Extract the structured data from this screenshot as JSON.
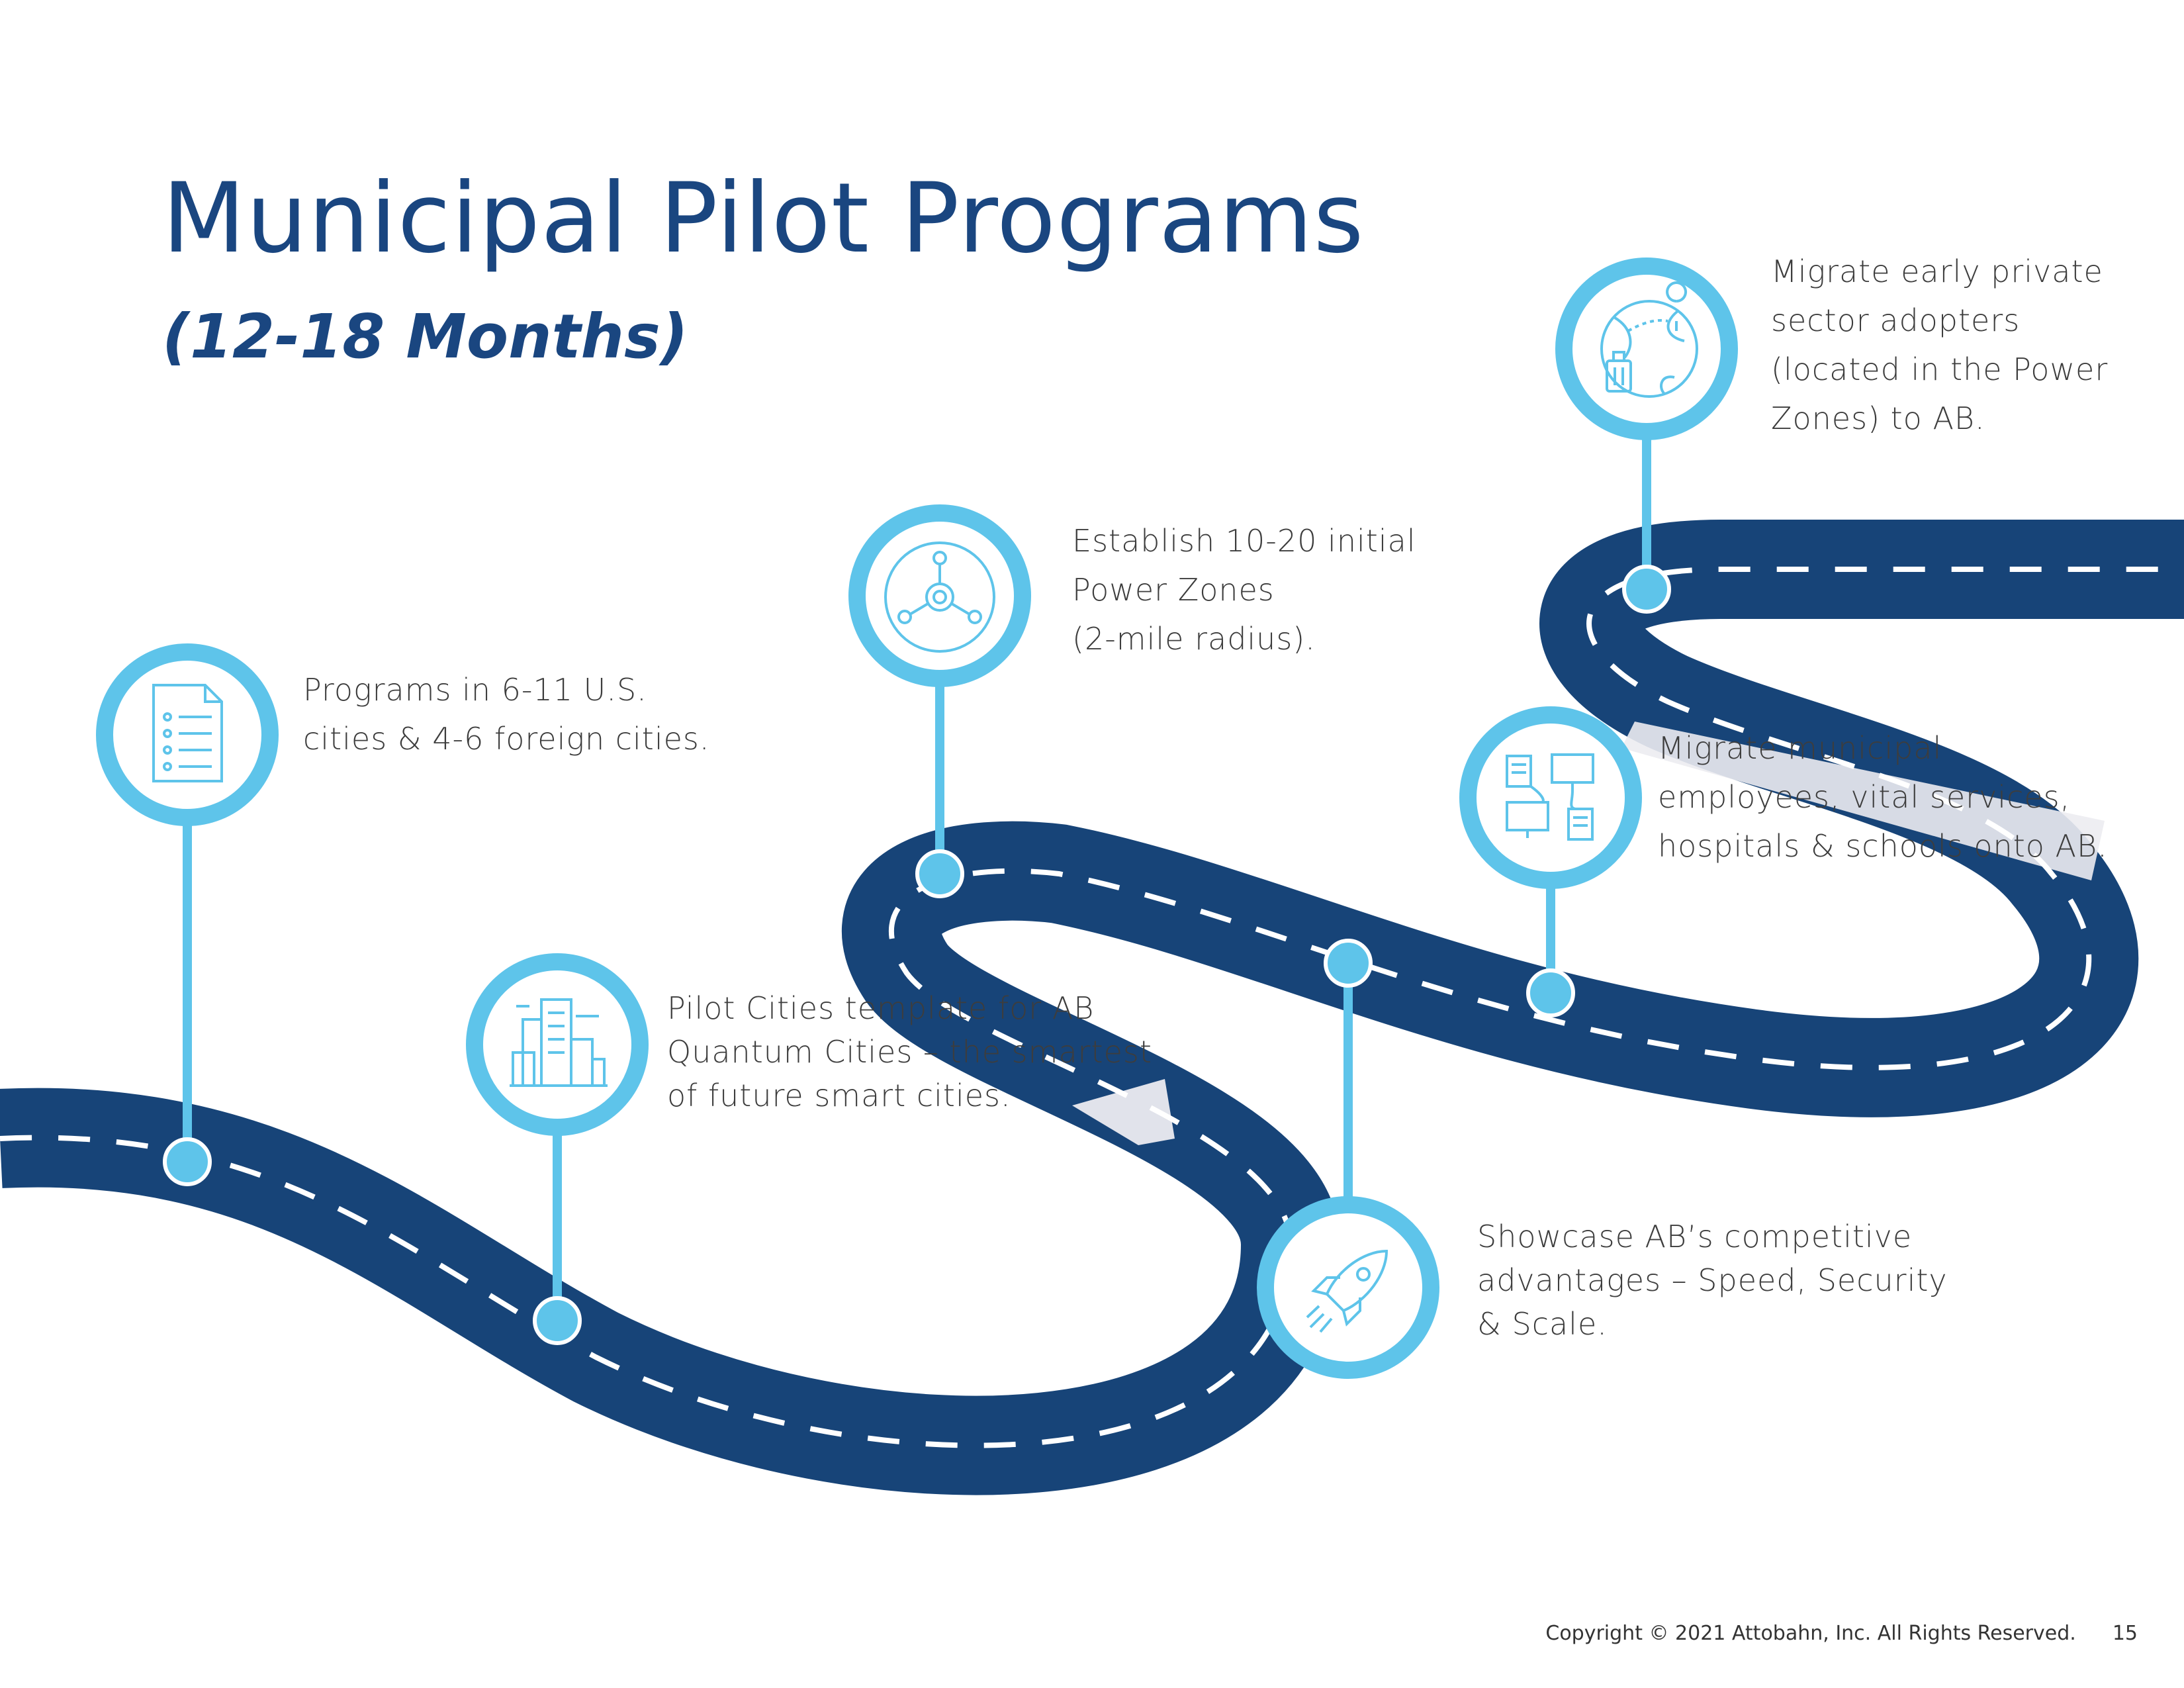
{
  "page": {
    "title": "Municipal Pilot Programs",
    "subtitle": "(12-18 Months)",
    "copyright": "Copyright © 2021 Attobahn, Inc. All Rights Reserved.",
    "page_number": "15"
  },
  "colors": {
    "road": "#174478",
    "accent": "#5ec4ea",
    "title": "#1a4680",
    "highlight": "#ececf1"
  },
  "milestones": [
    {
      "icon": "document-list-icon",
      "lines": [
        "Programs in 6-11 U.S.",
        "cities & 4-6 foreign cities."
      ]
    },
    {
      "icon": "city-buildings-icon",
      "lines": [
        "Pilot Cities template for AB",
        "Quantum Cities – the smartest",
        "of future smart cities."
      ]
    },
    {
      "icon": "network-hub-icon",
      "lines": [
        "Establish 10-20 initial",
        "Power Zones",
        "(2-mile radius)."
      ]
    },
    {
      "icon": "rocket-icon",
      "lines": [
        "Showcase AB’s competitive",
        "advantages – Speed, Security",
        "& Scale."
      ]
    },
    {
      "icon": "connected-devices-icon",
      "lines": [
        "Migrate municipal",
        "employees, vital services,",
        "hospitals & schools onto AB."
      ]
    },
    {
      "icon": "globe-travel-icon",
      "lines": [
        "Migrate early private",
        "sector adopters",
        "(located in the Power",
        "Zones) to AB."
      ]
    }
  ]
}
